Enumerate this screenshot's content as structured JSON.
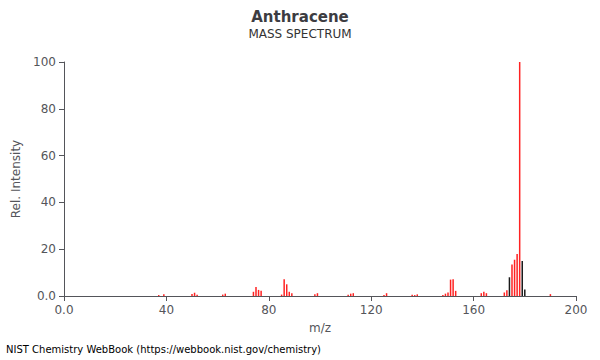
{
  "chart_data": {
    "type": "bar",
    "title": "Anthracene",
    "subtitle": "MASS SPECTRUM",
    "xlabel": "m/z",
    "ylabel": "Rel. Intensity",
    "annotation": "NIST Chemistry WebBook (https://webbook.nist.gov/chemistry)",
    "x": [
      37,
      39,
      50,
      51,
      52,
      62,
      63,
      74,
      75,
      76,
      77,
      85,
      86,
      87,
      88,
      89,
      98,
      99,
      111,
      112,
      113,
      125,
      126,
      136,
      137,
      138,
      148,
      149,
      150,
      151,
      152,
      153,
      163,
      164,
      165,
      172,
      173,
      174,
      175,
      176,
      177,
      178,
      179,
      180,
      190
    ],
    "values": [
      0.4,
      0.8,
      0.9,
      1.4,
      0.5,
      0.6,
      1.0,
      1.8,
      3.8,
      2.6,
      2.2,
      0.6,
      7.2,
      5.0,
      1.8,
      1.2,
      0.8,
      1.2,
      0.5,
      1.0,
      1.2,
      0.4,
      1.2,
      0.5,
      0.4,
      0.7,
      0.4,
      1.0,
      1.5,
      7.0,
      7.2,
      2.2,
      1.2,
      1.8,
      1.2,
      1.5,
      2.5,
      8.0,
      13.5,
      15.5,
      18.0,
      100.0,
      15.0,
      2.8,
      0.8
    ],
    "colors": [
      "#ff2222",
      "#ff2222",
      "#ff2222",
      "#ff2222",
      "#ff2222",
      "#ff2222",
      "#ff2222",
      "#ff2222",
      "#ff2222",
      "#ff2222",
      "#ff2222",
      "#ff2222",
      "#ff2222",
      "#ff2222",
      "#ff2222",
      "#ff2222",
      "#ff2222",
      "#ff2222",
      "#ff2222",
      "#ff2222",
      "#ff2222",
      "#ff2222",
      "#ff2222",
      "#ff2222",
      "#ff2222",
      "#ff2222",
      "#ff2222",
      "#ff2222",
      "#ff2222",
      "#ff2222",
      "#ff2222",
      "#ff2222",
      "#ff2222",
      "#ff2222",
      "#ff2222",
      "#ff2222",
      "#ff2222",
      "#1a1a1a",
      "#ff2222",
      "#ff2222",
      "#ff2222",
      "#ff2222",
      "#1a1a1a",
      "#1a1a1a",
      "#ff2222"
    ],
    "xlim": [
      0,
      200
    ],
    "xticks": [
      {
        "value": 0,
        "label": "0.0"
      },
      40,
      80,
      120,
      160,
      200
    ],
    "ylim": [
      0,
      100
    ],
    "yticks": [
      {
        "value": 0,
        "label": "0.0"
      },
      20,
      40,
      60,
      80,
      100
    ],
    "grid": false
  }
}
